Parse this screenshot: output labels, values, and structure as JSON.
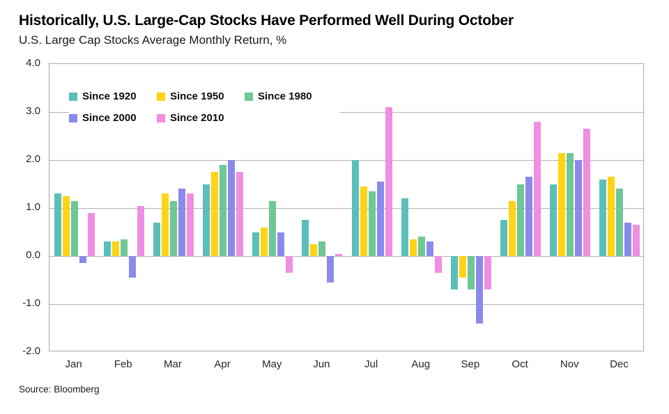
{
  "header": {
    "title": "Historically, U.S. Large-Cap Stocks Have Performed Well During October",
    "subtitle": "U.S. Large Cap Stocks Average Monthly Return, %"
  },
  "footer": {
    "source": "Source: Bloomberg"
  },
  "colors": {
    "grid": "#b2b2b2",
    "plot_border": "#a7a7a7",
    "background": "#ffffff",
    "text": "#1a1a1a"
  },
  "chart_data": {
    "type": "bar",
    "title": "Historically, U.S. Large-Cap Stocks Have Performed Well During October",
    "subtitle": "U.S. Large Cap Stocks Average Monthly Return, %",
    "xlabel": "",
    "ylabel": "Average Monthly Return, %",
    "categories": [
      "Jan",
      "Feb",
      "Mar",
      "Apr",
      "May",
      "Jun",
      "Jul",
      "Aug",
      "Sep",
      "Oct",
      "Nov",
      "Dec"
    ],
    "series": [
      {
        "name": "Since 1920",
        "color": "#5bbfb9",
        "values": [
          1.3,
          0.3,
          0.7,
          1.5,
          0.5,
          0.75,
          2.0,
          1.2,
          -0.7,
          0.75,
          1.5,
          1.6
        ]
      },
      {
        "name": "Since 1950",
        "color": "#ffd416",
        "values": [
          1.25,
          0.3,
          1.3,
          1.75,
          0.6,
          0.25,
          1.45,
          0.35,
          -0.45,
          1.15,
          2.15,
          1.65
        ]
      },
      {
        "name": "Since 1980",
        "color": "#6fc795",
        "values": [
          1.15,
          0.35,
          1.15,
          1.9,
          1.15,
          0.3,
          1.35,
          0.4,
          -0.7,
          1.5,
          2.15,
          1.4
        ]
      },
      {
        "name": "Since 2000",
        "color": "#8a8aec",
        "values": [
          -0.15,
          -0.45,
          1.4,
          2.0,
          0.5,
          -0.55,
          1.55,
          0.3,
          -1.4,
          1.65,
          2.0,
          0.7
        ]
      },
      {
        "name": "Since 2010",
        "color": "#ee8fe2",
        "values": [
          0.9,
          1.05,
          1.3,
          1.75,
          -0.35,
          0.05,
          3.1,
          -0.35,
          -0.7,
          2.8,
          2.65,
          0.65
        ]
      }
    ],
    "ylim": [
      -2.0,
      4.0
    ],
    "yticks": [
      4.0,
      3.0,
      2.0,
      1.0,
      0.0,
      -1.0,
      -2.0
    ],
    "ytick_labels": [
      "4.0",
      "3.0",
      "2.0",
      "1.0",
      "0.0",
      "-1.0",
      "-2.0"
    ],
    "grid": true,
    "legend_position": "top-left-inside"
  }
}
